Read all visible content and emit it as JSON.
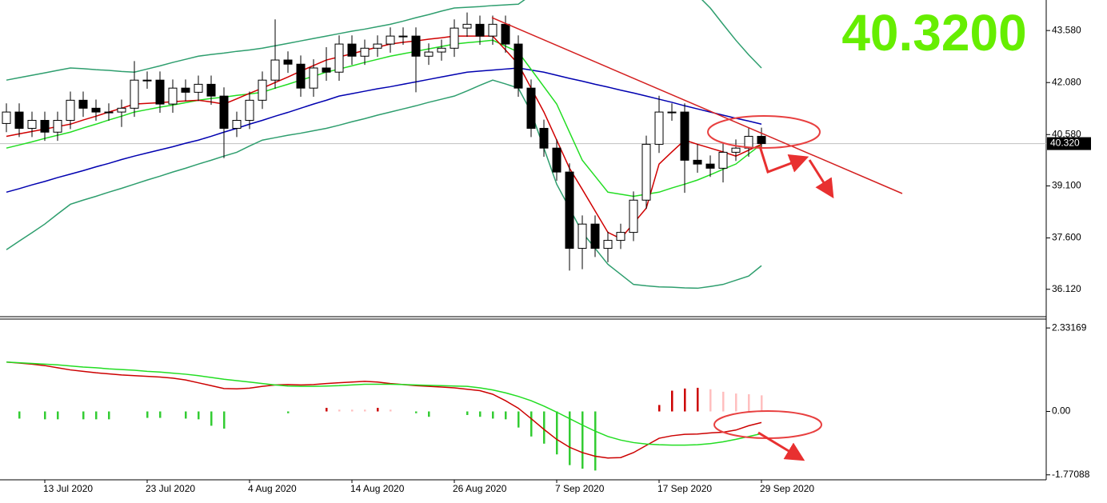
{
  "chart_data": {
    "type": "candlestick",
    "categories": [
      null,
      null,
      null,
      "13 Jul 2020",
      null,
      null,
      null,
      null,
      null,
      null,
      null,
      "23 Jul 2020",
      null,
      null,
      null,
      null,
      null,
      null,
      null,
      "4 Aug 2020",
      null,
      null,
      null,
      null,
      null,
      null,
      null,
      "14 Aug 2020",
      null,
      null,
      null,
      null,
      null,
      null,
      null,
      "26 Aug 2020",
      null,
      null,
      null,
      null,
      null,
      null,
      null,
      "7 Sep 2020",
      null,
      null,
      null,
      null,
      null,
      null,
      null,
      "17 Sep 2020",
      null,
      null,
      null,
      null,
      null,
      null,
      null,
      "29 Sep 2020"
    ],
    "open": [
      40.9,
      41.23,
      40.76,
      40.99,
      40.65,
      40.99,
      41.57,
      41.34,
      41.23,
      41.23,
      41.34,
      42.15,
      42.15,
      41.46,
      41.92,
      41.8,
      42.03,
      41.69,
      40.76,
      40.99,
      41.57,
      42.15,
      42.73,
      42.61,
      41.92,
      42.5,
      42.38,
      43.19,
      42.84,
      43.07,
      43.19,
      43.42,
      43.42,
      42.84,
      42.96,
      43.07,
      43.65,
      43.76,
      43.42,
      43.76,
      43.19,
      41.92,
      40.76,
      40.19,
      39.5,
      37.3,
      38.0,
      37.3,
      37.53,
      37.76,
      38.69,
      40.3,
      41.23,
      41.23,
      39.84,
      39.73,
      39.61,
      40.07,
      40.19,
      40.53
    ],
    "high": [
      41.48,
      41.48,
      41.24,
      41.24,
      41.24,
      41.82,
      41.82,
      41.59,
      41.48,
      41.59,
      42.7,
      42.4,
      42.4,
      42.17,
      42.17,
      42.28,
      42.28,
      41.94,
      41.24,
      41.82,
      42.4,
      43.9,
      42.98,
      42.86,
      42.75,
      43.1,
      43.44,
      43.44,
      43.32,
      43.44,
      43.67,
      43.67,
      43.67,
      43.21,
      43.32,
      43.9,
      44.1,
      44.01,
      44.01,
      44.01,
      43.44,
      42.17,
      41.01,
      40.44,
      39.75,
      38.25,
      38.25,
      37.78,
      38.01,
      38.94,
      40.55,
      41.7,
      41.48,
      41.48,
      40.3,
      39.98,
      40.32,
      40.44,
      40.78,
      40.78
    ],
    "low": [
      40.65,
      40.51,
      40.51,
      40.4,
      40.4,
      40.74,
      41.09,
      40.98,
      40.98,
      40.8,
      41.09,
      41.9,
      41.21,
      41.21,
      41.55,
      41.55,
      41.44,
      39.9,
      40.51,
      40.74,
      41.32,
      41.9,
      42.36,
      41.67,
      41.67,
      42.13,
      42.13,
      42.59,
      42.59,
      42.82,
      42.94,
      43.17,
      41.8,
      42.59,
      42.71,
      42.82,
      43.4,
      43.17,
      43.17,
      42.94,
      41.67,
      40.51,
      39.94,
      39.25,
      36.66,
      36.7,
      37.05,
      36.9,
      37.28,
      37.51,
      38.44,
      40.05,
      40.98,
      38.9,
      39.48,
      39.36,
      39.2,
      39.82,
      39.94,
      40.07
    ],
    "close": [
      41.23,
      40.76,
      40.99,
      40.65,
      40.99,
      41.57,
      41.34,
      41.23,
      41.23,
      41.34,
      42.15,
      42.15,
      41.46,
      41.92,
      41.8,
      42.03,
      41.69,
      40.76,
      40.99,
      41.57,
      42.15,
      42.73,
      42.61,
      41.92,
      42.5,
      42.38,
      43.19,
      42.84,
      43.07,
      43.19,
      43.42,
      43.42,
      42.84,
      42.96,
      43.07,
      43.65,
      43.76,
      43.42,
      43.76,
      43.19,
      41.92,
      40.76,
      40.19,
      39.5,
      37.3,
      38.0,
      37.3,
      37.53,
      37.76,
      38.69,
      40.3,
      41.23,
      41.23,
      39.84,
      39.73,
      39.61,
      40.07,
      40.19,
      40.53,
      40.32
    ],
    "up_color": "#ffffff",
    "down_color": "#000000",
    "overlays": [
      {
        "color": "#2e9e6e",
        "values": [
          42.15,
          42.22,
          42.29,
          42.36,
          42.43,
          42.5,
          42.48,
          42.45,
          42.43,
          42.4,
          42.38,
          42.47,
          42.56,
          42.66,
          42.75,
          42.84,
          42.89,
          42.93,
          42.98,
          43.02,
          43.07,
          43.14,
          43.21,
          43.28,
          43.35,
          43.42,
          43.49,
          43.56,
          43.62,
          43.69,
          43.76,
          43.85,
          43.95,
          44.04,
          44.14,
          44.23,
          44.25,
          44.27,
          44.3,
          44.32,
          44.34,
          44.6,
          45.2,
          45.8,
          46.4,
          46.9,
          47.2,
          47.3,
          47.2,
          46.9,
          46.4,
          45.9,
          45.4,
          44.9,
          44.6,
          44.23,
          43.76,
          43.3,
          42.88,
          42.5
        ]
      },
      {
        "color": "#2e9e6e",
        "values": [
          37.26,
          37.51,
          37.75,
          38.0,
          38.29,
          38.57,
          38.69,
          38.8,
          38.92,
          39.03,
          39.15,
          39.27,
          39.38,
          39.5,
          39.61,
          39.73,
          39.84,
          39.96,
          40.07,
          40.25,
          40.42,
          40.49,
          40.56,
          40.62,
          40.69,
          40.76,
          40.85,
          40.95,
          41.04,
          41.14,
          41.23,
          41.32,
          41.41,
          41.51,
          41.6,
          41.69,
          41.84,
          42.0,
          42.15,
          42.04,
          41.92,
          41.23,
          40.19,
          39.15,
          38.46,
          37.76,
          37.3,
          36.84,
          36.55,
          36.26,
          36.22,
          36.19,
          36.18,
          36.16,
          36.15,
          36.2,
          36.26,
          36.38,
          36.5,
          36.8
        ]
      },
      {
        "color": "#0000b0",
        "values": [
          38.92,
          39.02,
          39.13,
          39.23,
          39.34,
          39.44,
          39.54,
          39.65,
          39.75,
          39.86,
          39.96,
          40.05,
          40.14,
          40.23,
          40.33,
          40.42,
          40.53,
          40.65,
          40.76,
          40.88,
          40.99,
          41.11,
          41.22,
          41.34,
          41.46,
          41.57,
          41.69,
          41.76,
          41.83,
          41.9,
          41.96,
          42.03,
          42.1,
          42.17,
          42.24,
          42.31,
          42.38,
          42.41,
          42.44,
          42.47,
          42.5,
          42.44,
          42.38,
          42.29,
          42.2,
          42.12,
          42.03,
          41.95,
          41.86,
          41.78,
          41.69,
          41.6,
          41.51,
          41.41,
          41.32,
          41.23,
          41.14,
          41.05,
          40.97,
          40.88
        ]
      },
      {
        "color": "#22dd22",
        "values": [
          40.19,
          40.28,
          40.37,
          40.47,
          40.56,
          40.65,
          40.77,
          40.88,
          41.0,
          41.11,
          41.23,
          41.3,
          41.37,
          41.43,
          41.5,
          41.57,
          41.62,
          41.66,
          41.71,
          41.75,
          41.8,
          41.92,
          42.03,
          42.15,
          42.26,
          42.38,
          42.47,
          42.56,
          42.66,
          42.75,
          42.84,
          42.91,
          42.98,
          43.05,
          43.12,
          43.19,
          43.23,
          43.26,
          43.3,
          43.13,
          42.96,
          42.46,
          41.96,
          41.46,
          40.65,
          39.84,
          39.38,
          38.92,
          38.86,
          38.8,
          38.86,
          38.92,
          39.04,
          39.15,
          39.27,
          39.42,
          39.58,
          39.73,
          40.02,
          40.3
        ]
      },
      {
        "color": "#d00000",
        "values": [
          40.53,
          40.6,
          40.67,
          40.74,
          40.81,
          40.88,
          41.0,
          41.11,
          41.23,
          41.34,
          41.46,
          41.48,
          41.5,
          41.53,
          41.55,
          41.57,
          41.52,
          41.46,
          41.61,
          41.77,
          41.92,
          42.08,
          42.24,
          42.41,
          42.57,
          42.73,
          42.82,
          42.91,
          43.01,
          43.1,
          43.19,
          43.24,
          43.28,
          43.33,
          43.37,
          43.42,
          43.42,
          43.42,
          43.42,
          43.02,
          42.61,
          41.92,
          41.23,
          40.42,
          39.61,
          39.0,
          38.38,
          37.76,
          37.58,
          38.02,
          38.46,
          39.73,
          40.08,
          40.42,
          40.3,
          40.19,
          40.08,
          39.96,
          40.13,
          40.3
        ]
      }
    ],
    "ylim": [
      35.33,
      44.46
    ],
    "yticks": [
      {
        "value": 43.58,
        "label": "43.580"
      },
      {
        "value": 42.08,
        "label": "42.080"
      },
      {
        "value": 40.58,
        "label": "40.580"
      },
      {
        "value": 39.1,
        "label": "39.100"
      },
      {
        "value": 37.6,
        "label": "37.600"
      },
      {
        "value": 36.12,
        "label": "36.120"
      }
    ],
    "current_price": {
      "value": 40.32,
      "label": "40.320"
    },
    "big_label": "40.3200",
    "indicator": {
      "type": "macd",
      "histogram": [
        null,
        -0.2,
        null,
        -0.22,
        -0.22,
        null,
        -0.22,
        -0.22,
        -0.22,
        null,
        null,
        -0.18,
        -0.18,
        null,
        -0.2,
        -0.22,
        -0.4,
        -0.48,
        null,
        null,
        null,
        null,
        -0.05,
        null,
        null,
        0.1,
        0.05,
        0.05,
        0.05,
        0.1,
        0.05,
        null,
        -0.05,
        -0.15,
        null,
        null,
        -0.1,
        -0.15,
        -0.2,
        -0.22,
        -0.45,
        -0.7,
        -0.9,
        -1.2,
        -1.5,
        -1.6,
        -1.65,
        null,
        null,
        null,
        null,
        0.18,
        0.58,
        0.64,
        0.66,
        0.62,
        0.55,
        0.5,
        0.48,
        0.45
      ],
      "histogram_colors": [
        null,
        "#33cc33",
        null,
        "#33cc33",
        "#33cc33",
        null,
        "#33cc33",
        "#33cc33",
        "#33cc33",
        null,
        null,
        "#33cc33",
        "#33cc33",
        null,
        "#33cc33",
        "#33cc33",
        "#33cc33",
        "#33cc33",
        null,
        null,
        null,
        null,
        "#33cc33",
        null,
        null,
        "#cc0000",
        "#ffbfbf",
        "#ffbfbf",
        "#ffbfbf",
        "#cc0000",
        "#ffbfbf",
        null,
        "#33cc33",
        "#33cc33",
        null,
        null,
        "#33cc33",
        "#33cc33",
        "#33cc33",
        "#33cc33",
        "#33cc33",
        "#33cc33",
        "#33cc33",
        "#33cc33",
        "#33cc33",
        "#33cc33",
        "#33cc33",
        null,
        null,
        null,
        null,
        "#cc0000",
        "#cc0000",
        "#cc0000",
        "#cc0000",
        "#ffbfbf",
        "#ffbfbf",
        "#ffbfbf",
        "#ffbfbf",
        "#ffbfbf"
      ],
      "lines": [
        {
          "color": "#cc0000",
          "values": [
            1.38,
            1.35,
            1.32,
            1.28,
            1.22,
            1.16,
            1.12,
            1.08,
            1.05,
            1.02,
            1.0,
            0.98,
            0.96,
            0.93,
            0.88,
            0.8,
            0.72,
            0.64,
            0.63,
            0.65,
            0.7,
            0.74,
            0.75,
            0.74,
            0.75,
            0.78,
            0.8,
            0.82,
            0.84,
            0.82,
            0.78,
            0.75,
            0.72,
            0.7,
            0.68,
            0.66,
            0.62,
            0.58,
            0.48,
            0.3,
            0.09,
            -0.2,
            -0.5,
            -0.78,
            -1.0,
            -1.15,
            -1.25,
            -1.3,
            -1.29,
            -1.15,
            -0.95,
            -0.75,
            -0.68,
            -0.64,
            -0.63,
            -0.6,
            -0.58,
            -0.52,
            -0.4,
            -0.31
          ]
        },
        {
          "color": "#22dd22",
          "values": [
            1.38,
            1.36,
            1.34,
            1.32,
            1.3,
            1.27,
            1.24,
            1.22,
            1.19,
            1.17,
            1.15,
            1.12,
            1.1,
            1.07,
            1.04,
            1.0,
            0.95,
            0.9,
            0.86,
            0.82,
            0.78,
            0.74,
            0.71,
            0.7,
            0.7,
            0.71,
            0.72,
            0.74,
            0.76,
            0.76,
            0.76,
            0.75,
            0.74,
            0.73,
            0.72,
            0.71,
            0.7,
            0.66,
            0.6,
            0.52,
            0.42,
            0.3,
            0.15,
            -0.02,
            -0.2,
            -0.38,
            -0.55,
            -0.7,
            -0.8,
            -0.87,
            -0.91,
            -0.93,
            -0.94,
            -0.94,
            -0.93,
            -0.9,
            -0.85,
            -0.78,
            -0.7,
            -0.62
          ]
        }
      ],
      "ylim": [
        -1.91,
        2.58
      ],
      "yticks": [
        2.33169,
        {
          "value": 0,
          "label": "0.00"
        },
        -1.77088
      ]
    }
  }
}
